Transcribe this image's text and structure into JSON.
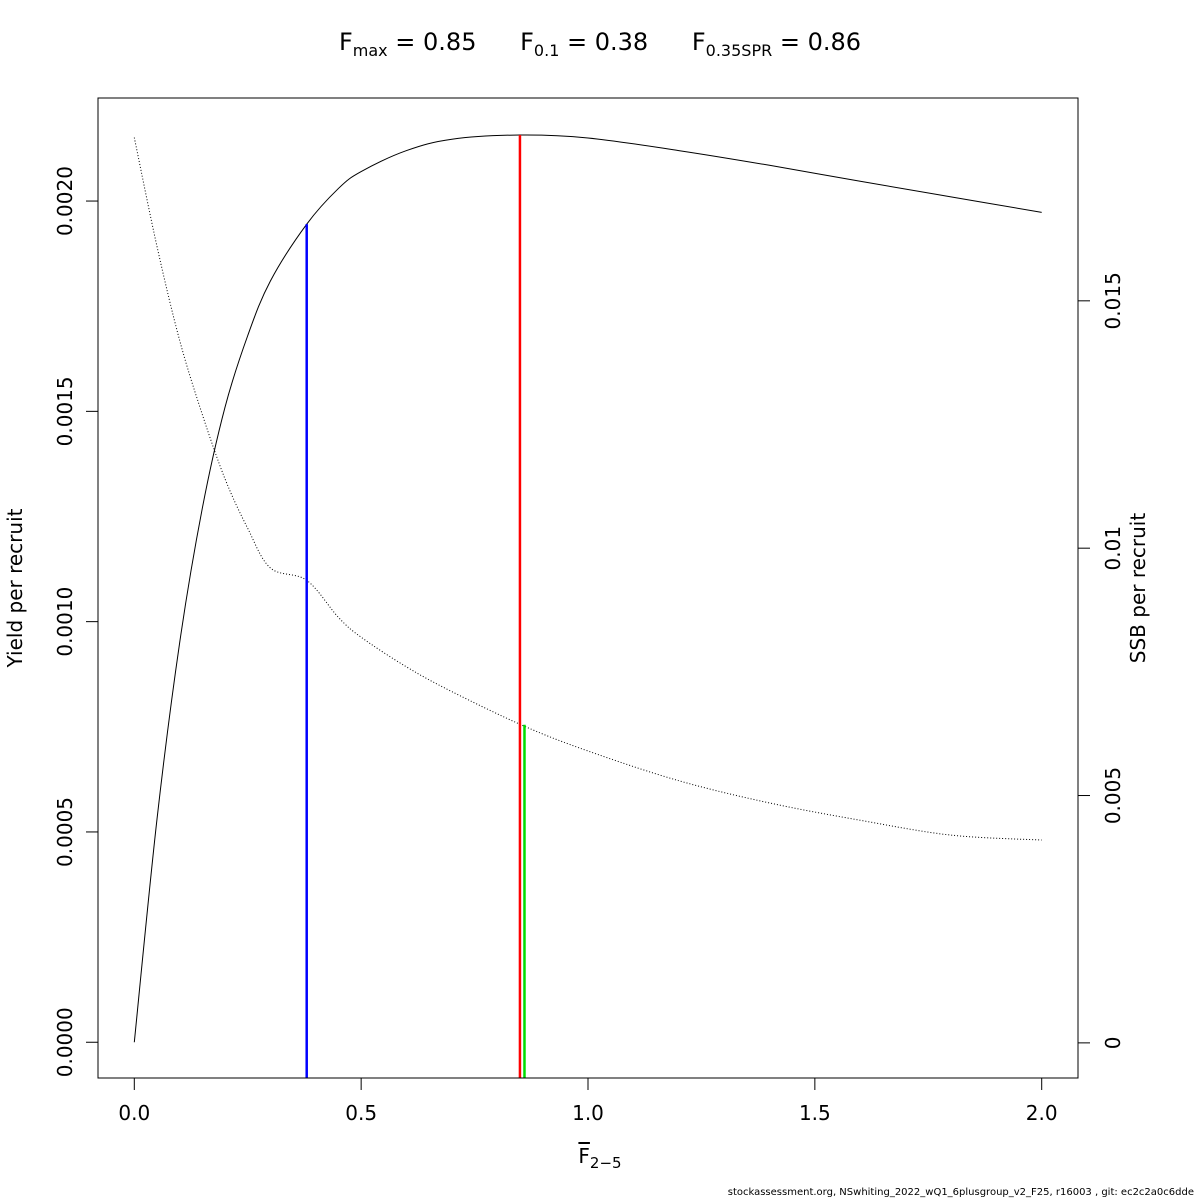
{
  "title": {
    "fmax": {
      "symbol": "F",
      "sub": "max",
      "value": "= 0.85"
    },
    "f01": {
      "symbol": "F",
      "sub": "0.1",
      "value": "= 0.38"
    },
    "fspr": {
      "symbol": "F",
      "sub": "0.35SPR",
      "value": "= 0.86"
    }
  },
  "xlabel": {
    "symbol": "F",
    "sub": "2−5"
  },
  "footer": "stockassessment.org, NSwhiting_2022_wQ1_6plusgroup_v2_F25, r16003 , git: ec2c2a0c6dde",
  "chart_data": {
    "type": "line",
    "title": "",
    "xlabel": "F̅ 2−5",
    "ylabel": "Yield per recruit",
    "y2label": "SSB per recruit",
    "xlim": [
      -0.08,
      2.08
    ],
    "ylim": [
      -8.5e-05,
      0.002245
    ],
    "y2lim": [
      -0.00071,
      0.0191
    ],
    "xticks": [
      0.0,
      0.5,
      1.0,
      1.5,
      2.0
    ],
    "xticklabels": [
      "0.0",
      "0.5",
      "1.0",
      "1.5",
      "2.0"
    ],
    "yticks": [
      0.0,
      0.0005,
      0.001,
      0.0015,
      0.002
    ],
    "yticklabels": [
      "0.0000",
      "0.0005",
      "0.0010",
      "0.0015",
      "0.0020"
    ],
    "y2ticks": [
      0,
      0.005,
      0.01,
      0.015
    ],
    "y2ticklabels": [
      "0",
      "0.005",
      "0.01",
      "0.015"
    ],
    "grid": false,
    "series": [
      {
        "axis": "left",
        "style": "solid",
        "color": "#000000",
        "x": [
          0.0,
          0.05,
          0.1,
          0.15,
          0.2,
          0.25,
          0.3,
          0.38,
          0.45,
          0.5,
          0.6,
          0.7,
          0.85,
          1.0,
          1.2,
          1.4,
          1.6,
          1.8,
          2.0
        ],
        "y": [
          0.0,
          0.00053,
          0.00095,
          0.00127,
          0.00151,
          0.00168,
          0.00181,
          0.001945,
          0.00203,
          0.00207,
          0.00212,
          0.002147,
          0.002157,
          0.00215,
          0.00212,
          0.002085,
          0.002047,
          0.00201,
          0.001973
        ]
      },
      {
        "axis": "right",
        "style": "dotted",
        "color": "#000000",
        "x": [
          0.0,
          0.05,
          0.1,
          0.15,
          0.2,
          0.25,
          0.3,
          0.38,
          0.45,
          0.5,
          0.6,
          0.7,
          0.86,
          1.0,
          1.2,
          1.4,
          1.6,
          1.8,
          2.0
        ],
        "y": [
          0.0183,
          0.0161,
          0.0142,
          0.0127,
          0.0114,
          0.0104,
          0.0096,
          0.00935,
          0.0086,
          0.0082,
          0.0076,
          0.0071,
          0.0064,
          0.0059,
          0.0053,
          0.00485,
          0.0045,
          0.0042,
          0.0041
        ]
      }
    ],
    "reference_lines": [
      {
        "x": 0.38,
        "y": 0.001945,
        "color": "#0000ff"
      },
      {
        "x": 0.85,
        "y": 0.002157,
        "color": "#ff0000"
      },
      {
        "x": 0.86,
        "y": 0.000755,
        "color": "#00dd00"
      }
    ]
  }
}
